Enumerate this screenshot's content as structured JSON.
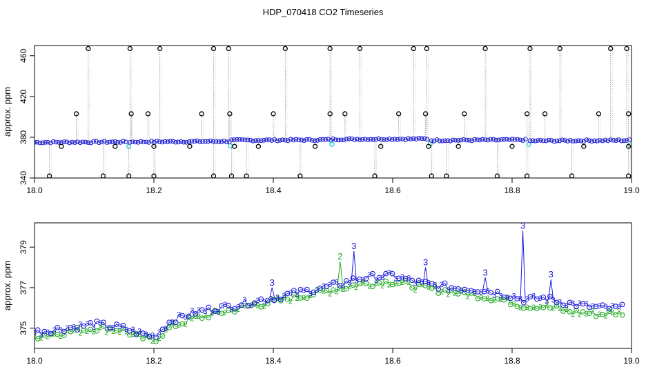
{
  "chart_data": [
    {
      "type": "scatter",
      "title": "HDP_070418  CO2 Timeseries",
      "xlabel": "",
      "ylabel": "approx. ppm",
      "xlim": [
        18.0,
        19.0
      ],
      "ylim": [
        340,
        470
      ],
      "x_ticks": [
        "18.0",
        "18.2",
        "18.4",
        "18.6",
        "18.8",
        "19.0"
      ],
      "y_ticks": [
        "340",
        "380",
        "420",
        "460"
      ],
      "grid": false,
      "legend": "none",
      "series": [
        {
          "marker": "circle",
          "color": "#1a1adb",
          "baseline_breaks": [
            18.0,
            18.16,
            18.33,
            18.5,
            18.665,
            18.83,
            19.0
          ],
          "baseline_values": [
            375,
            375.5,
            377,
            378,
            377,
            376.5
          ],
          "spikes_high": [
            18.09,
            18.16,
            18.21,
            18.3,
            18.325,
            18.42,
            18.495,
            18.545,
            18.635,
            18.657,
            18.755,
            18.83,
            18.88,
            18.965,
            18.992
          ],
          "spike_high_value": 467,
          "spikes_mid": [
            18.07,
            18.162,
            18.19,
            18.28,
            18.327,
            18.4,
            18.495,
            18.52,
            18.61,
            18.655,
            18.72,
            18.825,
            18.855,
            18.945,
            18.995
          ],
          "spike_mid_value": 403,
          "spikes_low": [
            18.025,
            18.115,
            18.158,
            18.2,
            18.3,
            18.33,
            18.355,
            18.445,
            18.57,
            18.665,
            18.69,
            18.775,
            18.825,
            18.9,
            18.995
          ],
          "spike_low_value": 342,
          "dips": [
            18.045,
            18.135,
            18.2,
            18.26,
            18.335,
            18.375,
            18.47,
            18.58,
            18.66,
            18.71,
            18.8,
            18.92,
            18.995
          ],
          "dip_value": 371
        }
      ]
    },
    {
      "type": "line",
      "title": "",
      "xlabel": "",
      "ylabel": "approx. ppm",
      "xlim": [
        18.0,
        19.0
      ],
      "ylim": [
        374,
        380.2
      ],
      "x_ticks": [
        "18.0",
        "18.2",
        "18.4",
        "18.6",
        "18.8",
        "19.0"
      ],
      "y_ticks": [
        "375",
        "377",
        "379"
      ],
      "grid": false,
      "legend": "none",
      "point_labels": [
        "2",
        "3"
      ],
      "series": [
        {
          "label": "2",
          "color": "#22aa22",
          "x": [
            18.0,
            18.05,
            18.1,
            18.15,
            18.17,
            18.2,
            18.23,
            18.27,
            18.33,
            18.36,
            18.4,
            18.45,
            18.5,
            18.55,
            18.6,
            18.65,
            18.7,
            18.75,
            18.8,
            18.82,
            18.85,
            18.9,
            18.95,
            18.99
          ],
          "y": [
            374.6,
            374.8,
            375.0,
            374.9,
            374.6,
            374.4,
            375.1,
            375.5,
            375.9,
            376.1,
            376.3,
            376.6,
            376.9,
            377.2,
            377.3,
            377.0,
            376.8,
            376.6,
            376.3,
            376.1,
            376.1,
            375.8,
            375.7,
            375.8
          ]
        },
        {
          "label": "3",
          "color": "#1a1adb",
          "x": [
            18.0,
            18.05,
            18.1,
            18.15,
            18.17,
            18.2,
            18.23,
            18.27,
            18.33,
            18.36,
            18.4,
            18.45,
            18.5,
            18.55,
            18.6,
            18.65,
            18.7,
            18.75,
            18.8,
            18.82,
            18.85,
            18.9,
            18.95,
            18.99
          ],
          "y": [
            374.8,
            375.0,
            375.2,
            375.0,
            374.8,
            374.6,
            375.4,
            375.8,
            376.1,
            376.3,
            376.5,
            376.8,
            377.1,
            377.5,
            377.6,
            377.2,
            377.0,
            376.9,
            376.6,
            376.4,
            376.5,
            376.2,
            376.0,
            376.0
          ]
        }
      ],
      "spikes": [
        {
          "x": 18.398,
          "y": 377.0,
          "label": "3"
        },
        {
          "x": 18.512,
          "y": 378.3,
          "label": "2"
        },
        {
          "x": 18.535,
          "y": 378.8,
          "label": "3"
        },
        {
          "x": 18.655,
          "y": 378.0,
          "label": "3"
        },
        {
          "x": 18.755,
          "y": 377.5,
          "label": "3"
        },
        {
          "x": 18.818,
          "y": 379.8,
          "label": "3"
        },
        {
          "x": 18.865,
          "y": 377.4,
          "label": "3"
        }
      ]
    }
  ]
}
